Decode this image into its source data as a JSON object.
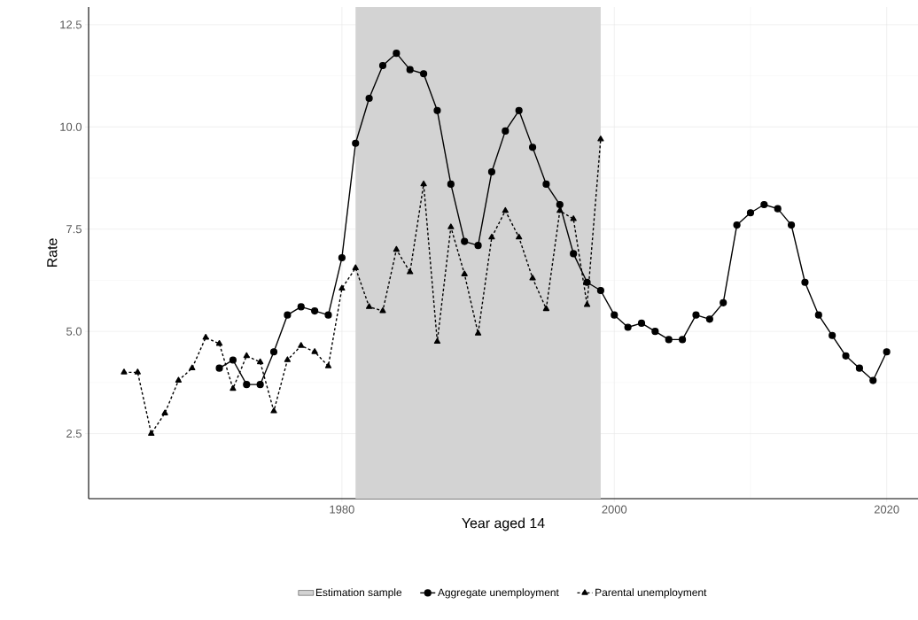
{
  "chart_data": {
    "type": "line",
    "xlabel": "Year aged 14",
    "ylabel": "Rate",
    "xlim": [
      1961.4,
      2022.3
    ],
    "ylim": [
      0.91,
      12.93
    ],
    "xticks": [
      1980,
      2000,
      2020
    ],
    "yticks": [
      {
        "value": 2.5,
        "label": "2.5"
      },
      {
        "value": 5,
        "label": "5.0"
      },
      {
        "value": 7.5,
        "label": "7.5"
      },
      {
        "value": 10,
        "label": "10.0"
      },
      {
        "value": 12.5,
        "label": "12.5"
      }
    ],
    "grid": true,
    "legend": "bottom",
    "bands": [
      {
        "axis": "x",
        "from": 1981,
        "to": 1999,
        "label": "Estimation sample",
        "color": "#d3d3d3"
      }
    ],
    "series": [
      {
        "name": "Aggregate unemployment",
        "color": "#000000",
        "marker": "circle",
        "line_style": "solid",
        "x": [
          1971,
          1972,
          1973,
          1974,
          1975,
          1976,
          1977,
          1978,
          1979,
          1980,
          1981,
          1982,
          1983,
          1984,
          1985,
          1986,
          1987,
          1988,
          1989,
          1990,
          1991,
          1992,
          1993,
          1994,
          1995,
          1996,
          1997,
          1998,
          1999,
          2000,
          2001,
          2002,
          2003,
          2004,
          2005,
          2006,
          2007,
          2008,
          2009,
          2010,
          2011,
          2012,
          2013,
          2014,
          2015,
          2016,
          2017,
          2018,
          2019,
          2020
        ],
        "values": [
          4.1,
          4.3,
          3.7,
          3.7,
          4.5,
          5.4,
          5.6,
          5.5,
          5.4,
          6.8,
          9.6,
          10.7,
          11.5,
          11.8,
          11.4,
          11.3,
          10.4,
          8.6,
          7.2,
          7.1,
          8.9,
          9.9,
          10.4,
          9.5,
          8.6,
          8.1,
          6.9,
          6.2,
          6.0,
          5.4,
          5.1,
          5.2,
          5.0,
          4.8,
          4.8,
          5.4,
          5.3,
          5.7,
          7.6,
          7.9,
          8.1,
          8.0,
          7.6,
          6.2,
          5.4,
          4.9,
          4.4,
          4.1,
          3.8,
          4.5
        ]
      },
      {
        "name": "Parental unemployment",
        "color": "#000000",
        "marker": "triangle",
        "line_style": "dashed",
        "x": [
          1964,
          1965,
          1966,
          1967,
          1968,
          1969,
          1970,
          1971,
          1972,
          1973,
          1974,
          1975,
          1976,
          1977,
          1978,
          1979,
          1980,
          1981,
          1982,
          1983,
          1984,
          1985,
          1986,
          1987,
          1988,
          1989,
          1990,
          1991,
          1992,
          1993,
          1994,
          1995,
          1996,
          1997,
          1998,
          1999
        ],
        "values": [
          4.0,
          4.0,
          2.5,
          3.0,
          3.8,
          4.1,
          4.85,
          4.7,
          3.6,
          4.4,
          4.25,
          3.05,
          4.3,
          4.65,
          4.5,
          4.15,
          6.05,
          6.55,
          5.6,
          5.5,
          7.0,
          6.45,
          8.6,
          4.75,
          7.55,
          6.4,
          4.95,
          7.3,
          7.95,
          7.3,
          6.3,
          5.55,
          7.95,
          7.75,
          5.65,
          9.7
        ]
      }
    ]
  }
}
